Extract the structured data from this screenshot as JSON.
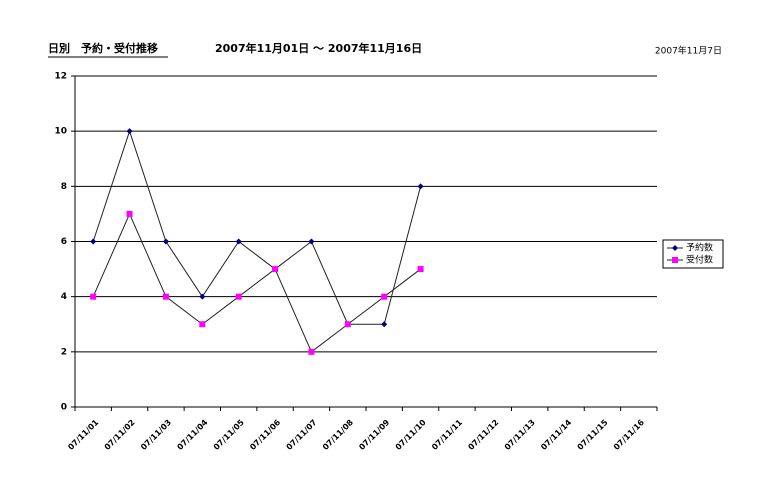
{
  "chart_data": {
    "type": "line",
    "title": "日別　予約・受付推移",
    "subtitle": "2007年11月01日 〜 2007年11月16日",
    "date": "2007年11月7日",
    "categories": [
      "07/11/01",
      "07/11/02",
      "07/11/03",
      "07/11/04",
      "07/11/05",
      "07/11/06",
      "07/11/07",
      "07/11/08",
      "07/11/09",
      "07/11/10",
      "07/11/11",
      "07/11/12",
      "07/11/13",
      "07/11/14",
      "07/11/15",
      "07/11/16"
    ],
    "series": [
      {
        "name": "予約数",
        "color": "#000080",
        "marker": "diamond",
        "values": [
          6,
          10,
          6,
          4,
          6,
          5,
          6,
          3,
          3,
          8,
          null,
          null,
          null,
          null,
          null,
          null
        ]
      },
      {
        "name": "受付数",
        "color": "#ff00ff",
        "marker": "square",
        "values": [
          4,
          7,
          4,
          3,
          4,
          5,
          2,
          3,
          4,
          5,
          null,
          null,
          null,
          null,
          null,
          null
        ]
      }
    ],
    "ylim": [
      0,
      12
    ],
    "yticks": [
      0,
      2,
      4,
      6,
      8,
      10,
      12
    ],
    "grid": true,
    "legend": "right"
  }
}
